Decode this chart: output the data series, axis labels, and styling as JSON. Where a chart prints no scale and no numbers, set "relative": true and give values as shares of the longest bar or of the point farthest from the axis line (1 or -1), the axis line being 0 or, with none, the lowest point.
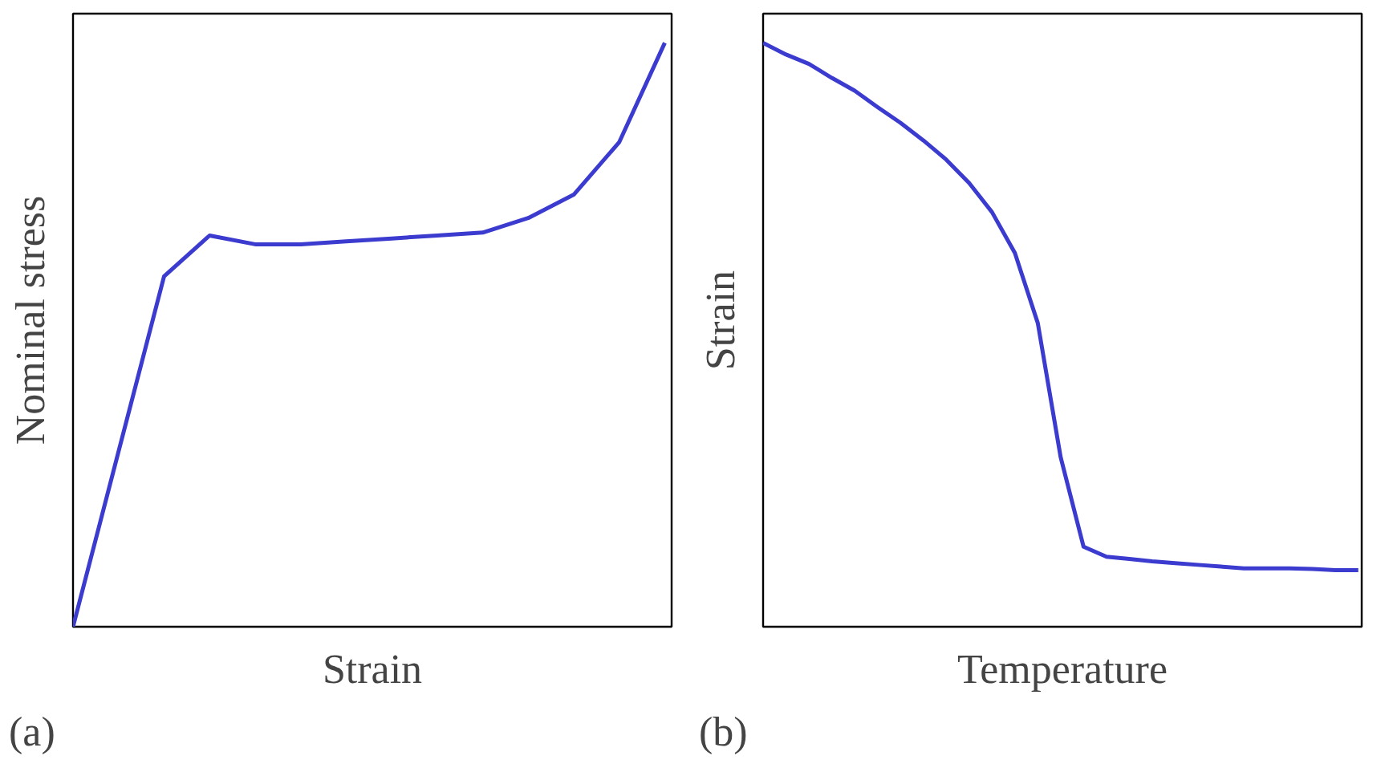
{
  "chart_data": [
    {
      "type": "line",
      "xlabel": "Strain",
      "ylabel": "Nominal stress",
      "relative": true,
      "annotations": [
        "(a)"
      ],
      "categories": [
        null,
        null,
        null,
        null,
        null,
        null,
        null,
        null,
        null,
        null,
        null,
        null,
        null,
        null
      ],
      "series": [
        {
          "color": "#3b3bcf",
          "values": [
            0,
            0.3,
            0.6,
            0.67,
            0.655,
            0.655,
            0.66,
            0.665,
            0.67,
            0.675,
            0.7,
            0.74,
            0.83,
            1.0
          ]
        }
      ]
    },
    {
      "type": "line",
      "xlabel": "Temperature",
      "ylabel": "Strain",
      "relative": true,
      "annotations": [
        "(b)"
      ],
      "categories": [
        null,
        null,
        null,
        null,
        null,
        null,
        null,
        null,
        null,
        null,
        null,
        null,
        null,
        null,
        null,
        null,
        null,
        null,
        null,
        null,
        null,
        null,
        null,
        null,
        null,
        null,
        null
      ],
      "series": [
        {
          "color": "#3b3bcf",
          "values": [
            1.0,
            0.98,
            0.964,
            0.94,
            0.918,
            0.89,
            0.863,
            0.833,
            0.8,
            0.76,
            0.71,
            0.64,
            0.52,
            0.29,
            0.137,
            0.12,
            0.116,
            0.112,
            0.109,
            0.106,
            0.103,
            0.1,
            0.1,
            0.1,
            0.099,
            0.097,
            0.097
          ]
        }
      ]
    }
  ]
}
